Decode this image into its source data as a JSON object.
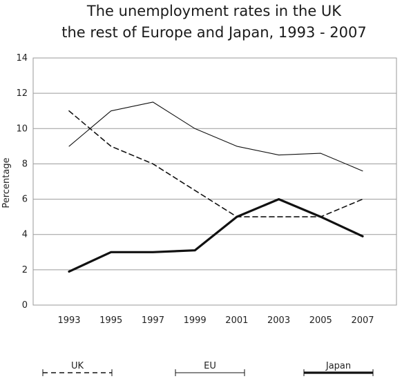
{
  "chart_data": {
    "type": "line",
    "title": "The unemployment rates in the UK",
    "subtitle": "the rest of Europe and Japan, 1993 - 2007",
    "xlabel": "",
    "ylabel": "Percentage",
    "x": [
      "1993",
      "1995",
      "1997",
      "1999",
      "2001",
      "2003",
      "2005",
      "2007"
    ],
    "ylim": [
      0,
      14
    ],
    "yticks": [
      "0",
      "2",
      "4",
      "6",
      "8",
      "10",
      "12",
      "14"
    ],
    "grid": "horizontal",
    "legend_position": "bottom",
    "series": [
      {
        "name": "UK",
        "style": "dashed",
        "color": "#111111",
        "values": [
          11,
          9,
          8,
          6.5,
          5,
          5,
          5,
          6
        ]
      },
      {
        "name": "EU",
        "style": "thin",
        "color": "#111111",
        "values": [
          9,
          11,
          11.5,
          10,
          9,
          8.5,
          8.6,
          7.6
        ]
      },
      {
        "name": "Japan",
        "style": "thick",
        "color": "#111111",
        "values": [
          1.9,
          3,
          3,
          3.1,
          5,
          6,
          5,
          3.9
        ]
      }
    ]
  }
}
